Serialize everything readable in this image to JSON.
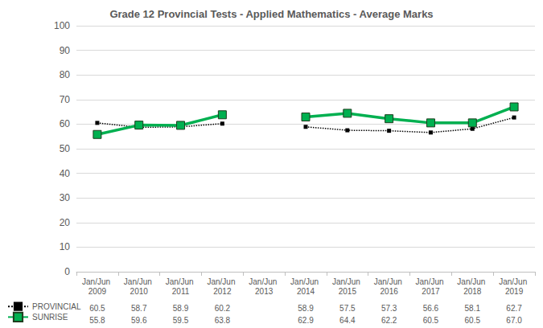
{
  "chart_data": {
    "type": "line",
    "title": "Grade 12 Provincial Tests - Applied Mathematics - Average Marks",
    "categories": [
      "Jan/Jun 2009",
      "Jan/Jun 2010",
      "Jan/Jun 2011",
      "Jan/Jun 2012",
      "Jan/Jun 2013",
      "Jan/Jun 2014",
      "Jan/Jun 2015",
      "Jan/Jun 2016",
      "Jan/Jun 2017",
      "Jan/Jun 2018",
      "Jan/Jun 2019"
    ],
    "series": [
      {
        "name": "PROVINCIAL",
        "color": "#000000",
        "line_style": "dotted",
        "marker": "square",
        "values": [
          60.5,
          58.7,
          58.9,
          60.2,
          null,
          58.9,
          57.5,
          57.3,
          56.6,
          58.1,
          62.7
        ],
        "value_labels": [
          "60.5",
          "58.7",
          "58.9",
          "60.2",
          null,
          "58.9",
          "57.5",
          "57.3",
          "56.6",
          "58.1",
          "62.7"
        ]
      },
      {
        "name": "SUNRISE",
        "color": "#00b050",
        "line_style": "solid",
        "marker": "square",
        "values": [
          55.8,
          59.6,
          59.5,
          63.8,
          null,
          62.9,
          64.4,
          62.2,
          60.5,
          60.5,
          67.0
        ],
        "value_labels": [
          "55.8",
          "59.6",
          "59.5",
          "63.8",
          null,
          "62.9",
          "64.4",
          "62.2",
          "60.5",
          "60.5",
          "67.0"
        ]
      }
    ],
    "ylim": [
      0,
      100
    ],
    "yticks": [
      0,
      10,
      20,
      30,
      40,
      50,
      60,
      70,
      80,
      90,
      100
    ],
    "grid": true,
    "legend": "bottom left"
  }
}
